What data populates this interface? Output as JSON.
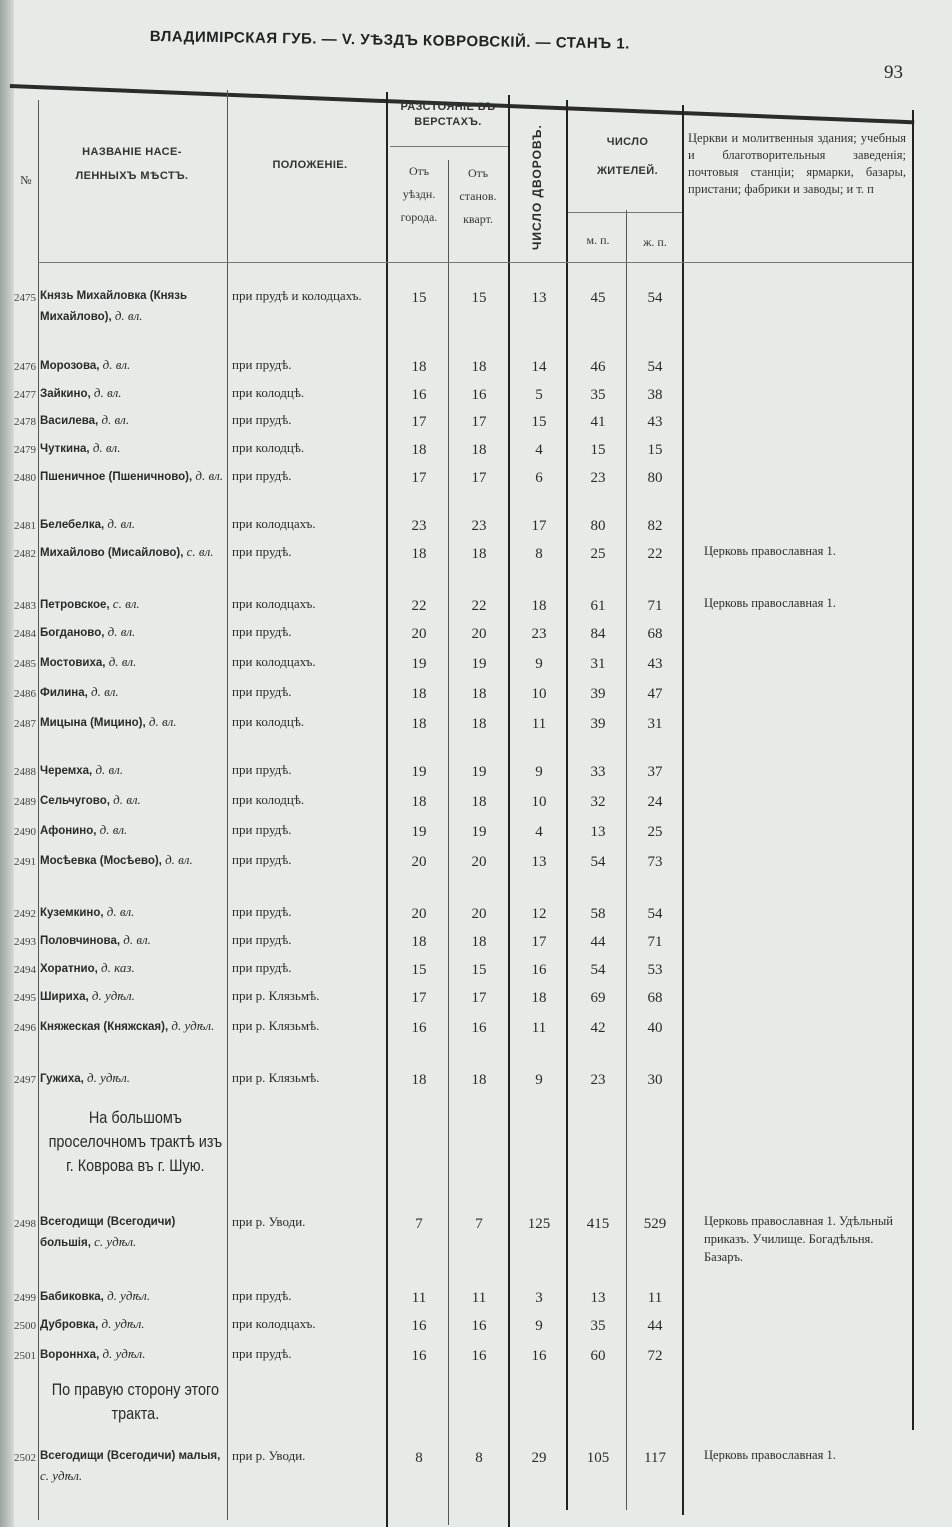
{
  "running_head": "ВЛАДИМІРСКАЯ ГУБ. — V. УѢЗДЪ КОВРОВСКІЙ. — СТАНЪ 1.",
  "page_number": "93",
  "headers": {
    "num": "№",
    "name": "НАЗВАНІЕ НАСЕ- ЛЕННЫХЪ МѢСТЪ.",
    "position": "ПОЛОЖЕНІЕ.",
    "distance": "РАЗСТОЯНІЕ ВЪ ВЕРСТАХЪ.",
    "from_town": "Отъ уѣздн. города.",
    "from_stan": "Отъ станов. кварт.",
    "households": "ЧИСЛО ДВОРОВЪ.",
    "inhabitants": "ЧИСЛО ЖИТЕЛЕЙ.",
    "male": "м. п.",
    "female": "ж. п.",
    "notes": "Церкви и молитвенныя здания; учебныя и благотворительныя заведенія; почтовыя станціи; ярмарки, базары, пристани; фабрики и заводы; и т. п"
  },
  "rows": [
    {
      "num": "2475",
      "name": "Князь Михайловка (Князь Михайлово),",
      "type": "д. вл.",
      "position": "при прудѣ и колодцахъ.",
      "from_town": "15",
      "from_stan": "15",
      "households": "13",
      "male": "45",
      "female": "54",
      "note": ""
    },
    {
      "num": "2476",
      "name": "Морозова,",
      "type": "д. вл.",
      "position": "при прудѣ.",
      "from_town": "18",
      "from_stan": "18",
      "households": "14",
      "male": "46",
      "female": "54",
      "note": ""
    },
    {
      "num": "2477",
      "name": "Зайкино,",
      "type": "д. вл.",
      "position": "при колодцѣ.",
      "from_town": "16",
      "from_stan": "16",
      "households": "5",
      "male": "35",
      "female": "38",
      "note": ""
    },
    {
      "num": "2478",
      "name": "Василева,",
      "type": "д. вл.",
      "position": "при прудѣ.",
      "from_town": "17",
      "from_stan": "17",
      "households": "15",
      "male": "41",
      "female": "43",
      "note": ""
    },
    {
      "num": "2479",
      "name": "Чуткина,",
      "type": "д. вл.",
      "position": "при колодцѣ.",
      "from_town": "18",
      "from_stan": "18",
      "households": "4",
      "male": "15",
      "female": "15",
      "note": ""
    },
    {
      "num": "2480",
      "name": "Пшеничное (Пшеничново),",
      "type": "д. вл.",
      "position": "при прудѣ.",
      "from_town": "17",
      "from_stan": "17",
      "households": "6",
      "male": "23",
      "female": "80",
      "note": ""
    },
    {
      "num": "2481",
      "name": "Белебелка,",
      "type": "д. вл.",
      "position": "при колодцахъ.",
      "from_town": "23",
      "from_stan": "23",
      "households": "17",
      "male": "80",
      "female": "82",
      "note": ""
    },
    {
      "num": "2482",
      "name": "Михайлово (Мисайлово),",
      "type": "с. вл.",
      "position": "при прудѣ.",
      "from_town": "18",
      "from_stan": "18",
      "households": "8",
      "male": "25",
      "female": "22",
      "note": "Церковь православная 1."
    },
    {
      "num": "2483",
      "name": "Петровское,",
      "type": "с. вл.",
      "position": "при колодцахъ.",
      "from_town": "22",
      "from_stan": "22",
      "households": "18",
      "male": "61",
      "female": "71",
      "note": "Церковь православная 1."
    },
    {
      "num": "2484",
      "name": "Богданово,",
      "type": "д. вл.",
      "position": "при прудѣ.",
      "from_town": "20",
      "from_stan": "20",
      "households": "23",
      "male": "84",
      "female": "68",
      "note": ""
    },
    {
      "num": "2485",
      "name": "Мостовиха,",
      "type": "д. вл.",
      "position": "при колодцахъ.",
      "from_town": "19",
      "from_stan": "19",
      "households": "9",
      "male": "31",
      "female": "43",
      "note": ""
    },
    {
      "num": "2486",
      "name": "Филина,",
      "type": "д. вл.",
      "position": "при прудѣ.",
      "from_town": "18",
      "from_stan": "18",
      "households": "10",
      "male": "39",
      "female": "47",
      "note": ""
    },
    {
      "num": "2487",
      "name": "Мицына (Мицино),",
      "type": "д. вл.",
      "position": "при колодцѣ.",
      "from_town": "18",
      "from_stan": "18",
      "households": "11",
      "male": "39",
      "female": "31",
      "note": ""
    },
    {
      "num": "2488",
      "name": "Черемха,",
      "type": "д. вл.",
      "position": "при прудѣ.",
      "from_town": "19",
      "from_stan": "19",
      "households": "9",
      "male": "33",
      "female": "37",
      "note": ""
    },
    {
      "num": "2489",
      "name": "Сельчугово,",
      "type": "д. вл.",
      "position": "при колодцѣ.",
      "from_town": "18",
      "from_stan": "18",
      "households": "10",
      "male": "32",
      "female": "24",
      "note": ""
    },
    {
      "num": "2490",
      "name": "Афонино,",
      "type": "д. вл.",
      "position": "при прудѣ.",
      "from_town": "19",
      "from_stan": "19",
      "households": "4",
      "male": "13",
      "female": "25",
      "note": ""
    },
    {
      "num": "2491",
      "name": "Мосѣевка (Мосѣево),",
      "type": "д. вл.",
      "position": "при прудѣ.",
      "from_town": "20",
      "from_stan": "20",
      "households": "13",
      "male": "54",
      "female": "73",
      "note": ""
    },
    {
      "num": "2492",
      "name": "Куземкино,",
      "type": "д. вл.",
      "position": "при прудѣ.",
      "from_town": "20",
      "from_stan": "20",
      "households": "12",
      "male": "58",
      "female": "54",
      "note": ""
    },
    {
      "num": "2493",
      "name": "Половчинова,",
      "type": "д. вл.",
      "position": "при прудѣ.",
      "from_town": "18",
      "from_stan": "18",
      "households": "17",
      "male": "44",
      "female": "71",
      "note": ""
    },
    {
      "num": "2494",
      "name": "Хоратнио,",
      "type": "д. каз.",
      "position": "при прудѣ.",
      "from_town": "15",
      "from_stan": "15",
      "households": "16",
      "male": "54",
      "female": "53",
      "note": ""
    },
    {
      "num": "2495",
      "name": "Шириха,",
      "type": "д. удѣл.",
      "position": "при р. Клязьмѣ.",
      "from_town": "17",
      "from_stan": "17",
      "households": "18",
      "male": "69",
      "female": "68",
      "note": ""
    },
    {
      "num": "2496",
      "name": "Княжеская (Княжская),",
      "type": "д. удѣл.",
      "position": "при р. Клязьмѣ.",
      "from_town": "16",
      "from_stan": "16",
      "households": "11",
      "male": "42",
      "female": "40",
      "note": ""
    },
    {
      "num": "2497",
      "name": "Гужиха,",
      "type": "д. удѣл.",
      "position": "при р. Клязьмѣ.",
      "from_town": "18",
      "from_stan": "18",
      "households": "9",
      "male": "23",
      "female": "30",
      "note": ""
    },
    {
      "num": "2498",
      "name": "Всегодищи (Всегодичи) большія,",
      "type": "с. удѣл.",
      "position": "при р. Уводи.",
      "from_town": "7",
      "from_stan": "7",
      "households": "125",
      "male": "415",
      "female": "529",
      "note": "Церковь православная 1. Удѣльный приказъ. Училище. Богадѣльня. Базаръ."
    },
    {
      "num": "2499",
      "name": "Бабиковка,",
      "type": "д. удѣл.",
      "position": "при прудѣ.",
      "from_town": "11",
      "from_stan": "11",
      "households": "3",
      "male": "13",
      "female": "11",
      "note": ""
    },
    {
      "num": "2500",
      "name": "Дубровка,",
      "type": "д. удѣл.",
      "position": "при колодцахъ.",
      "from_town": "16",
      "from_stan": "16",
      "households": "9",
      "male": "35",
      "female": "44",
      "note": ""
    },
    {
      "num": "2501",
      "name": "Вороннха,",
      "type": "д. удѣл.",
      "position": "при прудѣ.",
      "from_town": "16",
      "from_stan": "16",
      "households": "16",
      "male": "60",
      "female": "72",
      "note": ""
    },
    {
      "num": "2502",
      "name": "Всегодищи (Всегодичи) малыя,",
      "type": "с. удѣл.",
      "position": "при р. Уводи.",
      "from_town": "8",
      "from_stan": "8",
      "households": "29",
      "male": "105",
      "female": "117",
      "note": "Церковь православная 1."
    }
  ],
  "sections": [
    "На большомъ проселочномъ трактѣ изъ г. Коврова въ г. Шую.",
    "По правую сторону этого тракта."
  ]
}
